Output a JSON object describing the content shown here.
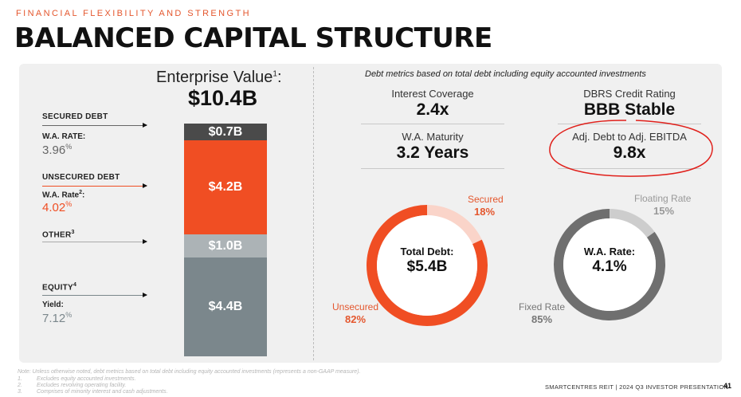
{
  "header": {
    "kicker": "FINANCIAL FLEXIBILITY AND STRENGTH",
    "title": "BALANCED CAPITAL STRUCTURE"
  },
  "enterprise_value": {
    "label": "Enterprise Value",
    "footnote_ref": "1",
    "suffix": ":",
    "value": "$10.4B"
  },
  "capital_stack": [
    {
      "label": "$0.7B",
      "value": 0.7,
      "color": "#4a4a4a"
    },
    {
      "label": "$4.2B",
      "value": 4.2,
      "color": "#f04e23"
    },
    {
      "label": "$1.0B",
      "value": 1.0,
      "color": "#acb3b6"
    },
    {
      "label": "$4.4B",
      "value": 4.4,
      "color": "#7b878c"
    }
  ],
  "left_labels": {
    "secured": {
      "title": "SECURED DEBT",
      "rate_label": "W.A. RATE:",
      "rate_value": "3.96",
      "unit": "%"
    },
    "unsecured": {
      "title": "UNSECURED DEBT",
      "rate_label": "W.A. Rate",
      "rate_ref": "2",
      "rate_suffix": ":",
      "rate_value": "4.02",
      "unit": "%"
    },
    "other": {
      "title": "OTHER",
      "ref": "3"
    },
    "equity": {
      "title": "EQUITY",
      "ref": "4",
      "yield_label": "Yield:",
      "yield_value": "7.12",
      "unit": "%"
    }
  },
  "metrics": {
    "note": "Debt metrics based on total debt including equity accounted investments",
    "interest_coverage": {
      "label": "Interest Coverage",
      "value": "2.4x"
    },
    "wa_maturity": {
      "label": "W.A. Maturity",
      "value": "3.2 Years"
    },
    "dbrs": {
      "label": "DBRS Credit Rating",
      "value": "BBB Stable"
    },
    "debt_ebitda": {
      "label": "Adj. Debt to Adj. EBITDA",
      "value": "9.8x"
    }
  },
  "chart_data": [
    {
      "type": "pie",
      "center_label": "Total Debt:",
      "center_value": "$5.4B",
      "slices": [
        {
          "name": "Secured",
          "label": "18%",
          "value": 18,
          "color": "#fad4c9"
        },
        {
          "name": "Unsecured",
          "label": "82%",
          "value": 82,
          "color": "#f04e23"
        }
      ]
    },
    {
      "type": "pie",
      "center_label": "W.A. Rate:",
      "center_value": "4.1%",
      "slices": [
        {
          "name": "Floating Rate",
          "label": "15%",
          "value": 15,
          "color": "#cdcdcd"
        },
        {
          "name": "Fixed Rate",
          "label": "85%",
          "value": 85,
          "color": "#6f6f6f"
        }
      ]
    }
  ],
  "footnotes": {
    "note": "Note: Unless otherwise noted, debt metrics based on total debt including equity accounted investments (represents a non-GAAP measure).",
    "items": [
      {
        "num": "1.",
        "text": "Excludes equity accounted investments."
      },
      {
        "num": "2.",
        "text": "Excludes revolving operating facility."
      },
      {
        "num": "3.",
        "text": "Comprises of minority interest and cash adjustments."
      }
    ]
  },
  "footer": {
    "text": "SMARTCENTRES REIT  |  2024 Q3 INVESTOR PRESENTATION",
    "page": "41"
  },
  "colors": {
    "accent": "#e4572e",
    "annotation_ring": "#e0201b"
  }
}
